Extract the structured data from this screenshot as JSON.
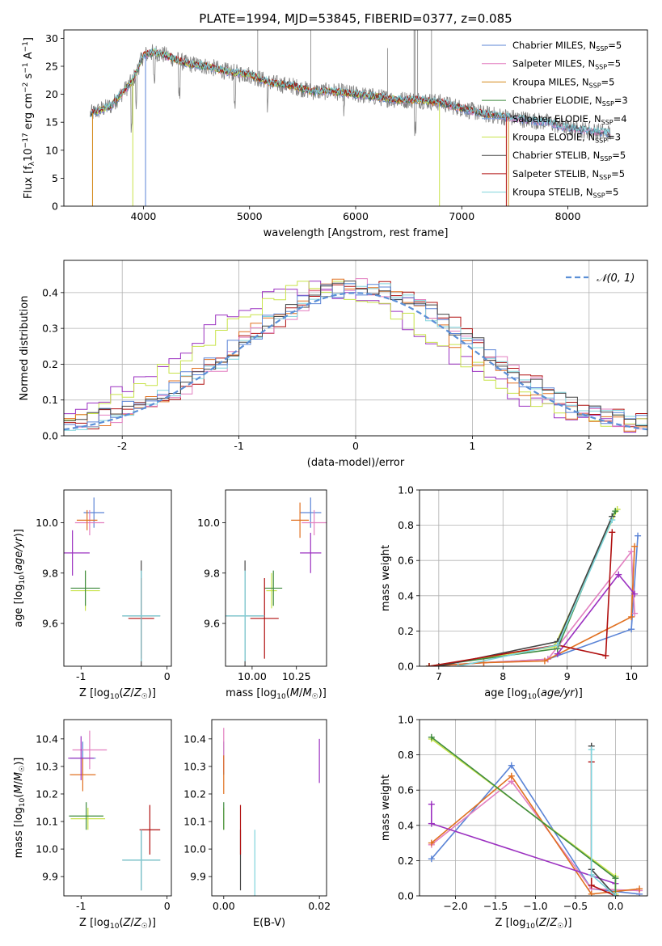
{
  "figure": {
    "title": "PLATE=1994, MJD=53845, FIBERID=0377, z=0.085"
  },
  "chart_data": [
    {
      "type": "line",
      "panel": "spectrum",
      "title": "PLATE=1994, MJD=53845, FIBERID=0377, z=0.085",
      "xlabel": "wavelength [Angstrom, rest frame]",
      "ylabel": "Flux [f_λ10^-17 erg cm^-2 s^-1 A^-1]",
      "xlim": [
        3250,
        8750
      ],
      "ylim": [
        0,
        31.5
      ],
      "xticks": [
        4000,
        5000,
        6000,
        7000,
        8000
      ],
      "yticks": [
        0,
        5,
        10,
        15,
        20,
        25,
        30
      ],
      "grid": false,
      "legend": "top-right",
      "data_trend": {
        "x": [
          3500,
          3700,
          3900,
          4000,
          4100,
          4200,
          4400,
          4600,
          4800,
          5000,
          5200,
          5400,
          5600,
          5800,
          6000,
          6200,
          6400,
          6600,
          6800,
          7000,
          7200,
          7400,
          7600,
          7800,
          8000,
          8200,
          8400
        ],
        "y": [
          16.5,
          18.0,
          22.5,
          27.0,
          27.5,
          27.0,
          25.5,
          25.0,
          24.0,
          23.5,
          22.0,
          21.5,
          20.5,
          20.5,
          20.0,
          19.5,
          19.0,
          19.0,
          18.5,
          17.5,
          16.5,
          16.0,
          15.5,
          15.0,
          14.0,
          13.5,
          13.0
        ]
      },
      "series": [
        {
          "name": "Chabrier MILES, N_SSP=5",
          "color": "#5b84d6"
        },
        {
          "name": "Salpeter MILES, N_SSP=5",
          "color": "#e27fc0"
        },
        {
          "name": "Kroupa MILES, N_SSP=5",
          "color": "#d58a1c"
        },
        {
          "name": "Chabrier ELODIE, N_SSP=3",
          "color": "#3f8b3f"
        },
        {
          "name": "Salpeter ELODIE, N_SSP=4",
          "color": "#7ea6e0"
        },
        {
          "name": "Kroupa ELODIE, N_SSP=3",
          "color": "#c8e34a"
        },
        {
          "name": "Chabrier STELIB, N_SSP=5",
          "color": "#444444"
        },
        {
          "name": "Salpeter STELIB, N_SSP=5",
          "color": "#b01010"
        },
        {
          "name": "Kroupa STELIB, N_SSP=5",
          "color": "#7fd3dc"
        }
      ],
      "data_color": "#808080"
    },
    {
      "type": "line",
      "panel": "residual-histogram",
      "xlabel": "(data-model)/error",
      "ylabel": "Normed distribution",
      "xlim": [
        -2.5,
        2.5
      ],
      "ylim": [
        0,
        0.49
      ],
      "xticks": [
        -2,
        -1,
        0,
        1,
        2
      ],
      "yticks": [
        0.0,
        0.1,
        0.2,
        0.3,
        0.4
      ],
      "grid": true,
      "legend": "top-right",
      "legend_label": "𝒩(0, 1)",
      "gaussian_color": "#5b8fd6",
      "hist_colors": [
        "#9b30c0",
        "#c8e34a",
        "#e07020",
        "#b01010",
        "#e27fc0",
        "#7fd3dc",
        "#5b84d6",
        "#444444"
      ]
    },
    {
      "type": "scatter",
      "panel": "age-vs-Z",
      "xlabel": "Z [log10(Z/Z☉)]",
      "ylabel": "age  [log10(age/yr)]",
      "xlim": [
        -1.2,
        0.05
      ],
      "ylim": [
        9.43,
        10.13
      ],
      "xticks": [
        -1,
        0
      ],
      "yticks": [
        9.6,
        9.8,
        10.0
      ],
      "points": [
        {
          "x": -0.85,
          "y": 10.04,
          "xerr": 0.12,
          "yerr": 0.06,
          "color": "#5b84d6"
        },
        {
          "x": -0.9,
          "y": 10.0,
          "xerr": 0.17,
          "yerr": 0.05,
          "color": "#e27fc0"
        },
        {
          "x": -0.93,
          "y": 10.01,
          "xerr": 0.12,
          "yerr": 0.04,
          "color": "#e07020"
        },
        {
          "x": -1.1,
          "y": 9.88,
          "xerr": 0.2,
          "yerr": 0.09,
          "color": "#9b30c0"
        },
        {
          "x": -0.95,
          "y": 9.73,
          "xerr": 0.17,
          "yerr": 0.08,
          "color": "#c8e34a"
        },
        {
          "x": -0.95,
          "y": 9.74,
          "xerr": 0.17,
          "yerr": 0.07,
          "color": "#3f8b3f"
        },
        {
          "x": -0.3,
          "y": 9.63,
          "xerr": 0.22,
          "yerr": 0.22,
          "color": "#444444"
        },
        {
          "x": -0.3,
          "y": 9.62,
          "xerr": 0.15,
          "yerr": 0.16,
          "color": "#b01010"
        },
        {
          "x": -0.3,
          "y": 9.63,
          "xerr": 0.22,
          "yerr": 0.18,
          "color": "#7fd3dc"
        }
      ]
    },
    {
      "type": "scatter",
      "panel": "age-vs-mass",
      "xlabel": "mass [log10(M/M☉)]",
      "ylabel": "",
      "xlim": [
        9.85,
        10.42
      ],
      "ylim": [
        9.43,
        10.13
      ],
      "xticks": [
        10.0,
        10.25
      ],
      "xtick_labels": [
        "10.00",
        "10.25"
      ],
      "yticks": [
        9.6,
        9.8,
        10.0
      ],
      "points": [
        {
          "x": 10.33,
          "y": 10.04,
          "xerr": 0.06,
          "yerr": 0.06,
          "color": "#5b84d6"
        },
        {
          "x": 10.35,
          "y": 10.0,
          "xerr": 0.07,
          "yerr": 0.05,
          "color": "#e27fc0"
        },
        {
          "x": 10.27,
          "y": 10.01,
          "xerr": 0.05,
          "yerr": 0.07,
          "color": "#e07020"
        },
        {
          "x": 10.33,
          "y": 9.88,
          "xerr": 0.06,
          "yerr": 0.08,
          "color": "#9b30c0"
        },
        {
          "x": 10.11,
          "y": 9.73,
          "xerr": 0.03,
          "yerr": 0.07,
          "color": "#c8e34a"
        },
        {
          "x": 10.12,
          "y": 9.74,
          "xerr": 0.05,
          "yerr": 0.07,
          "color": "#3f8b3f"
        },
        {
          "x": 9.96,
          "y": 9.63,
          "xerr": 0.11,
          "yerr": 0.22,
          "color": "#444444"
        },
        {
          "x": 10.07,
          "y": 9.62,
          "xerr": 0.08,
          "yerr": 0.16,
          "color": "#b01010"
        },
        {
          "x": 9.96,
          "y": 9.63,
          "xerr": 0.11,
          "yerr": 0.18,
          "color": "#7fd3dc"
        }
      ]
    },
    {
      "type": "line",
      "panel": "mass-weight-vs-age",
      "xlabel": "age  [log10(age/yr)]",
      "ylabel": "mass weight",
      "xlim": [
        6.7,
        10.25
      ],
      "ylim": [
        0,
        1.0
      ],
      "xticks": [
        7,
        8,
        9,
        10
      ],
      "yticks": [
        0.0,
        0.2,
        0.4,
        0.6,
        0.8,
        1.0
      ],
      "grid": true,
      "series": [
        {
          "color": "#5b84d6",
          "x": [
            6.85,
            7.7,
            8.7,
            10.0,
            10.1
          ],
          "y": [
            0.0,
            0.02,
            0.04,
            0.21,
            0.74
          ]
        },
        {
          "color": "#e27fc0",
          "x": [
            6.85,
            7.7,
            8.7,
            10.0,
            10.05
          ],
          "y": [
            0.0,
            0.02,
            0.04,
            0.65,
            0.3
          ]
        },
        {
          "color": "#e07020",
          "x": [
            6.85,
            7.7,
            8.65,
            10.0,
            10.05
          ],
          "y": [
            0.0,
            0.02,
            0.03,
            0.28,
            0.68
          ]
        },
        {
          "color": "#9b30c0",
          "x": [
            8.85,
            9.8,
            10.05
          ],
          "y": [
            0.07,
            0.52,
            0.41
          ]
        },
        {
          "color": "#c8e34a",
          "x": [
            6.85,
            8.8,
            9.78
          ],
          "y": [
            0.0,
            0.11,
            0.89
          ]
        },
        {
          "color": "#3f8b3f",
          "x": [
            6.85,
            8.85,
            9.7,
            9.75
          ],
          "y": [
            0.0,
            0.1,
            0.85,
            0.88
          ]
        },
        {
          "color": "#444444",
          "x": [
            7.0,
            8.85,
            9.7
          ],
          "y": [
            0.0,
            0.14,
            0.85
          ]
        },
        {
          "color": "#b01010",
          "x": [
            6.85,
            8.85,
            9.6,
            9.7
          ],
          "y": [
            0.0,
            0.12,
            0.06,
            0.76
          ]
        },
        {
          "color": "#7fd3dc",
          "x": [
            7.3,
            8.85,
            9.7
          ],
          "y": [
            0.0,
            0.12,
            0.83
          ]
        }
      ]
    },
    {
      "type": "scatter",
      "panel": "mass-vs-Z",
      "xlabel": "Z [log10(Z/Z☉)]",
      "ylabel": "mass [log10(M/M☉)]",
      "xlim": [
        -1.2,
        0.05
      ],
      "ylim": [
        9.83,
        10.47
      ],
      "xticks": [
        -1,
        0
      ],
      "yticks": [
        9.9,
        10.0,
        10.1,
        10.2,
        10.3,
        10.4
      ],
      "points": [
        {
          "x": -0.98,
          "y": 10.33,
          "xerr": 0.15,
          "yerr": 0.06,
          "color": "#5b84d6"
        },
        {
          "x": -0.9,
          "y": 10.36,
          "xerr": 0.2,
          "yerr": 0.07,
          "color": "#e27fc0"
        },
        {
          "x": -0.98,
          "y": 10.27,
          "xerr": 0.15,
          "yerr": 0.06,
          "color": "#e07020"
        },
        {
          "x": -1.0,
          "y": 10.33,
          "xerr": 0.15,
          "yerr": 0.08,
          "color": "#9b30c0"
        },
        {
          "x": -0.92,
          "y": 10.11,
          "xerr": 0.2,
          "yerr": 0.04,
          "color": "#c8e34a"
        },
        {
          "x": -0.94,
          "y": 10.12,
          "xerr": 0.2,
          "yerr": 0.05,
          "color": "#3f8b3f"
        },
        {
          "x": -0.3,
          "y": 9.96,
          "xerr": 0.22,
          "yerr": 0.11,
          "color": "#444444"
        },
        {
          "x": -0.2,
          "y": 10.07,
          "xerr": 0.12,
          "yerr": 0.09,
          "color": "#b01010"
        },
        {
          "x": -0.3,
          "y": 9.96,
          "xerr": 0.22,
          "yerr": 0.11,
          "color": "#7fd3dc"
        }
      ]
    },
    {
      "type": "scatter",
      "panel": "mass-vs-EBV",
      "xlabel": "E(B-V)",
      "ylabel": "",
      "xlim": [
        -0.0025,
        0.0215
      ],
      "ylim": [
        9.83,
        10.47
      ],
      "xticks": [
        0.0,
        0.02
      ],
      "xtick_labels": [
        "0.00",
        "0.02"
      ],
      "yticks": [
        9.9,
        10.0,
        10.1,
        10.2,
        10.3,
        10.4
      ],
      "points": [
        {
          "x": 0.0,
          "y": 10.33,
          "yerr": 0.06,
          "color": "#5b84d6"
        },
        {
          "x": 0.0,
          "y": 10.36,
          "yerr": 0.08,
          "color": "#e27fc0"
        },
        {
          "x": 0.0,
          "y": 10.27,
          "yerr": 0.07,
          "color": "#e07020"
        },
        {
          "x": 0.02,
          "y": 10.32,
          "yerr": 0.08,
          "color": "#9b30c0"
        },
        {
          "x": 0.0,
          "y": 10.11,
          "yerr": 0.04,
          "color": "#c8e34a"
        },
        {
          "x": 0.0,
          "y": 10.12,
          "yerr": 0.05,
          "color": "#3f8b3f"
        },
        {
          "x": 0.0035,
          "y": 9.96,
          "yerr": 0.11,
          "color": "#444444"
        },
        {
          "x": 0.0035,
          "y": 10.07,
          "yerr": 0.09,
          "color": "#b01010"
        },
        {
          "x": 0.0065,
          "y": 9.95,
          "yerr": 0.12,
          "color": "#7fd3dc"
        }
      ]
    },
    {
      "type": "line",
      "panel": "mass-weight-vs-Z",
      "xlabel": "Z [log10(Z/Z☉)]",
      "ylabel": "mass weight",
      "xlim": [
        -2.45,
        0.4
      ],
      "ylim": [
        0,
        1.0
      ],
      "xticks": [
        -2.0,
        -1.5,
        -1.0,
        -0.5,
        0.0
      ],
      "yticks": [
        0.0,
        0.2,
        0.4,
        0.6,
        0.8,
        1.0
      ],
      "grid": true,
      "series": [
        {
          "color": "#5b84d6",
          "x": [
            -2.3,
            -1.3,
            -0.3,
            0.3
          ],
          "y": [
            0.21,
            0.74,
            0.04,
            0.01
          ]
        },
        {
          "color": "#e27fc0",
          "x": [
            -2.3,
            -1.3,
            -0.3,
            0.3
          ],
          "y": [
            0.29,
            0.65,
            0.04,
            0.03
          ]
        },
        {
          "color": "#e07020",
          "x": [
            -2.3,
            -1.3,
            -0.3,
            0.3
          ],
          "y": [
            0.3,
            0.68,
            0.01,
            0.04
          ]
        },
        {
          "color": "#9b30c0",
          "x": [
            -2.3,
            -2.3,
            0.0
          ],
          "y": [
            0.52,
            0.41,
            0.07
          ]
        },
        {
          "color": "#c8e34a",
          "x": [
            -2.3,
            0.0,
            0.0
          ],
          "y": [
            0.89,
            0.11,
            0.01
          ]
        },
        {
          "color": "#3f8b3f",
          "x": [
            -2.3,
            0.0,
            0.0
          ],
          "y": [
            0.9,
            0.1,
            0.0
          ]
        },
        {
          "color": "#444444",
          "x": [
            -0.3,
            -0.3,
            0.0
          ],
          "y": [
            0.85,
            0.15,
            0.0
          ]
        },
        {
          "color": "#b01010",
          "x": [
            -0.3,
            -0.3,
            0.0
          ],
          "y": [
            0.76,
            0.06,
            0.0
          ]
        },
        {
          "color": "#7fd3dc",
          "x": [
            -0.3,
            -0.3,
            0.0
          ],
          "y": [
            0.83,
            0.12,
            0.0
          ]
        }
      ]
    }
  ]
}
